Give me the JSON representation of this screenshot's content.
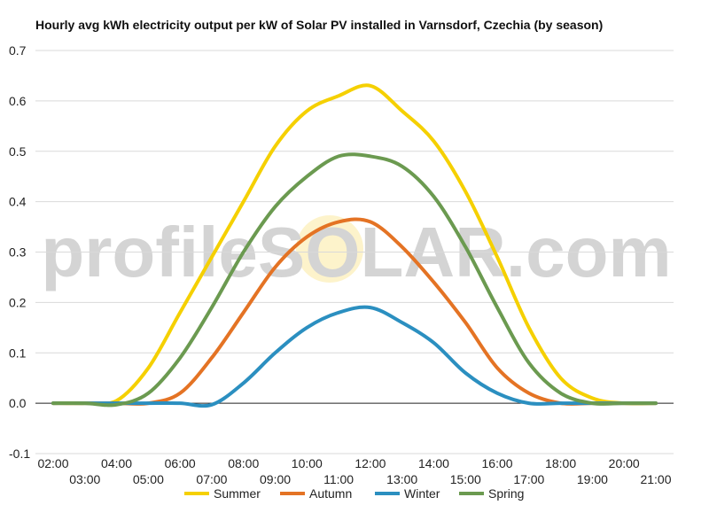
{
  "chart_data": {
    "type": "line",
    "title": "Hourly avg kWh electricity output per kW of Solar PV installed in Varnsdorf, Czechia (by season)",
    "xlabel": "",
    "ylabel": "",
    "ylim": [
      -0.1,
      0.7
    ],
    "yticks": [
      "0.7",
      "0.6",
      "0.5",
      "0.4",
      "0.3",
      "0.2",
      "0.1",
      "0.0",
      "-0.1"
    ],
    "ytick_values": [
      0.7,
      0.6,
      0.5,
      0.4,
      0.3,
      0.2,
      0.1,
      0.0,
      -0.1
    ],
    "xticks_top": [
      "02:00",
      "04:00",
      "06:00",
      "08:00",
      "10:00",
      "12:00",
      "14:00",
      "16:00",
      "18:00",
      "20:00"
    ],
    "xticks_bottom": [
      "03:00",
      "05:00",
      "07:00",
      "09:00",
      "11:00",
      "13:00",
      "15:00",
      "17:00",
      "19:00",
      "21:00"
    ],
    "x": [
      "02:00",
      "03:00",
      "04:00",
      "05:00",
      "06:00",
      "07:00",
      "08:00",
      "09:00",
      "10:00",
      "11:00",
      "12:00",
      "13:00",
      "14:00",
      "15:00",
      "16:00",
      "17:00",
      "18:00",
      "19:00",
      "20:00",
      "21:00"
    ],
    "grid": true,
    "legend_position": "bottom",
    "series": [
      {
        "name": "Summer",
        "color": "#f5d000",
        "values": [
          0.0,
          0.0,
          0.005,
          0.07,
          0.18,
          0.29,
          0.4,
          0.51,
          0.58,
          0.61,
          0.63,
          0.58,
          0.52,
          0.42,
          0.29,
          0.15,
          0.05,
          0.01,
          0.0,
          0.0
        ]
      },
      {
        "name": "Autumn",
        "color": "#e47324",
        "values": [
          0.0,
          0.0,
          0.0,
          0.0,
          0.02,
          0.09,
          0.18,
          0.27,
          0.33,
          0.36,
          0.36,
          0.31,
          0.24,
          0.16,
          0.07,
          0.02,
          0.0,
          0.0,
          0.0,
          0.0
        ]
      },
      {
        "name": "Winter",
        "color": "#2b8fc0",
        "values": [
          0.0,
          0.0,
          0.0,
          0.0,
          0.0,
          -0.003,
          0.04,
          0.1,
          0.15,
          0.18,
          0.19,
          0.16,
          0.12,
          0.06,
          0.02,
          0.0,
          0.0,
          0.0,
          0.0,
          0.0
        ]
      },
      {
        "name": "Spring",
        "color": "#6b9a50",
        "values": [
          0.0,
          0.0,
          -0.003,
          0.02,
          0.09,
          0.19,
          0.3,
          0.39,
          0.45,
          0.49,
          0.49,
          0.47,
          0.41,
          0.31,
          0.19,
          0.08,
          0.02,
          0.0,
          0.0,
          0.0
        ]
      }
    ]
  },
  "watermark": {
    "text": "profileSOLAR.com"
  }
}
